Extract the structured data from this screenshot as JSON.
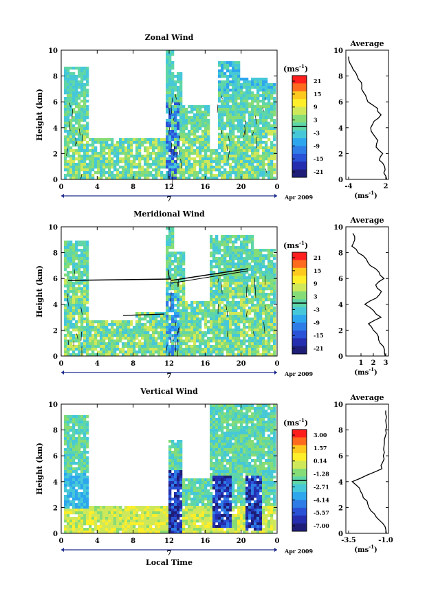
{
  "xaxis_label": "Local Time",
  "colorbar_unit": "(ms",
  "unit_exp": "-1",
  "avg_unit": "(ms",
  "avg_title": "Average",
  "date_label": "Apr 2009",
  "panels": [
    {
      "title": "Zonal Wind",
      "ylabel": "Height (km)",
      "x_ticks": [
        "0",
        "4",
        "8",
        "12",
        "16",
        "20",
        "0"
      ],
      "day_label": "7",
      "y_ticks": [
        "0",
        "2",
        "4",
        "6",
        "8",
        "10"
      ],
      "colorbar_ticks": [
        "21",
        "15",
        "9",
        "3",
        "-3",
        "-9",
        "-15",
        "-21"
      ],
      "avg_x_ticks": [
        "-4",
        "2"
      ],
      "avg_y_ticks": [
        "0",
        "2",
        "4",
        "6",
        "8",
        "10"
      ]
    },
    {
      "title": "Meridional Wind",
      "ylabel": "Height (km)",
      "x_ticks": [
        "0",
        "4",
        "8",
        "12",
        "16",
        "20",
        "0"
      ],
      "day_label": "7",
      "y_ticks": [
        "0",
        "2",
        "4",
        "6",
        "8",
        "10"
      ],
      "colorbar_ticks": [
        "21",
        "15",
        "9",
        "3",
        "-3",
        "-9",
        "-15",
        "-21"
      ],
      "avg_x_ticks": [
        "1",
        "2",
        "3"
      ],
      "avg_y_ticks": [
        "0",
        "2",
        "4",
        "6",
        "8",
        "10"
      ]
    },
    {
      "title": "Vertical Wind",
      "ylabel": "Height (km)",
      "x_ticks": [
        "0",
        "4",
        "8",
        "12",
        "16",
        "20",
        "0"
      ],
      "day_label": "7",
      "y_ticks": [
        "0",
        "2",
        "4",
        "6",
        "8",
        "10"
      ],
      "colorbar_ticks": [
        "3.00",
        "1.57",
        "0.14",
        "-1.28",
        "-2.71",
        "-4.14",
        "-5.57",
        "-7.00"
      ],
      "avg_x_ticks": [
        "-3.5",
        "-1.0"
      ],
      "avg_y_ticks": [
        "0",
        "2",
        "4",
        "6",
        "8",
        "10"
      ]
    }
  ],
  "chart_data": [
    {
      "type": "heatmap",
      "title": "Zonal Wind",
      "ylabel": "Height (km)",
      "xlabel": "",
      "xlim": [
        0,
        24
      ],
      "ylim": [
        0,
        10
      ],
      "x_ticks": [
        "0",
        "4",
        "8",
        "12",
        "16",
        "20",
        "0"
      ],
      "colorbar_range": [
        -21,
        21
      ],
      "colorbar_ticks": [
        21,
        15,
        9,
        3,
        -3,
        -9,
        -15,
        -21
      ],
      "profile": {
        "title": "Average",
        "xlim": [
          -4,
          2
        ],
        "height": [
          0,
          0.5,
          1,
          1.5,
          2,
          2.5,
          3,
          3.5,
          4,
          4.5,
          5,
          5.5,
          6,
          6.5,
          7,
          7.5,
          8,
          8.5,
          9,
          9.5
        ],
        "value": [
          2.2,
          1.8,
          1.7,
          1.0,
          1.4,
          0.4,
          0.8,
          0.0,
          -0.4,
          0.2,
          1.2,
          0.6,
          -1.0,
          -1.2,
          -1.8,
          -2.0,
          -2.5,
          -3.2,
          -3.8,
          -4.0
        ]
      }
    },
    {
      "type": "heatmap",
      "title": "Meridional Wind",
      "ylabel": "Height (km)",
      "xlabel": "",
      "xlim": [
        0,
        24
      ],
      "ylim": [
        0,
        10
      ],
      "x_ticks": [
        "0",
        "4",
        "8",
        "12",
        "16",
        "20",
        "0"
      ],
      "colorbar_range": [
        -21,
        21
      ],
      "colorbar_ticks": [
        21,
        15,
        9,
        3,
        -3,
        -9,
        -15,
        -21
      ],
      "profile": {
        "title": "Average",
        "xlim": [
          0,
          3
        ],
        "height": [
          0,
          0.5,
          1,
          1.5,
          2,
          2.5,
          3,
          3.5,
          4,
          4.5,
          5,
          5.5,
          6,
          6.5,
          7,
          7.5,
          8,
          8.5,
          9,
          9.5
        ],
        "value": [
          3.0,
          2.9,
          2.6,
          2.4,
          2.0,
          1.6,
          2.6,
          2.0,
          1.3,
          2.2,
          2.6,
          2.2,
          2.8,
          2.4,
          1.8,
          1.4,
          0.8,
          0.3,
          0.5,
          0.4
        ]
      }
    },
    {
      "type": "heatmap",
      "title": "Vertical Wind",
      "ylabel": "Height (km)",
      "xlabel": "Local Time",
      "xlim": [
        0,
        24
      ],
      "ylim": [
        0,
        10
      ],
      "x_ticks": [
        "0",
        "4",
        "8",
        "12",
        "16",
        "20",
        "0"
      ],
      "colorbar_range": [
        -7.0,
        3.0
      ],
      "colorbar_ticks": [
        3.0,
        1.57,
        0.14,
        -1.28,
        -2.71,
        -4.14,
        -5.57,
        -7.0
      ],
      "profile": {
        "title": "Average",
        "xlim": [
          -3.5,
          -1.0
        ],
        "height": [
          0,
          0.5,
          1,
          1.5,
          2,
          2.5,
          3,
          3.5,
          4,
          4.5,
          5,
          5.5,
          6,
          6.5,
          7,
          7.5,
          8,
          8.5,
          9,
          9.5
        ],
        "value": [
          -1.0,
          -1.0,
          -1.4,
          -1.8,
          -2.1,
          -2.3,
          -2.6,
          -2.8,
          -3.3,
          -2.3,
          -1.3,
          -1.2,
          -1.15,
          -1.1,
          -1.1,
          -1.05,
          -1.0,
          -1.0,
          -1.0,
          -1.0
        ]
      }
    }
  ]
}
